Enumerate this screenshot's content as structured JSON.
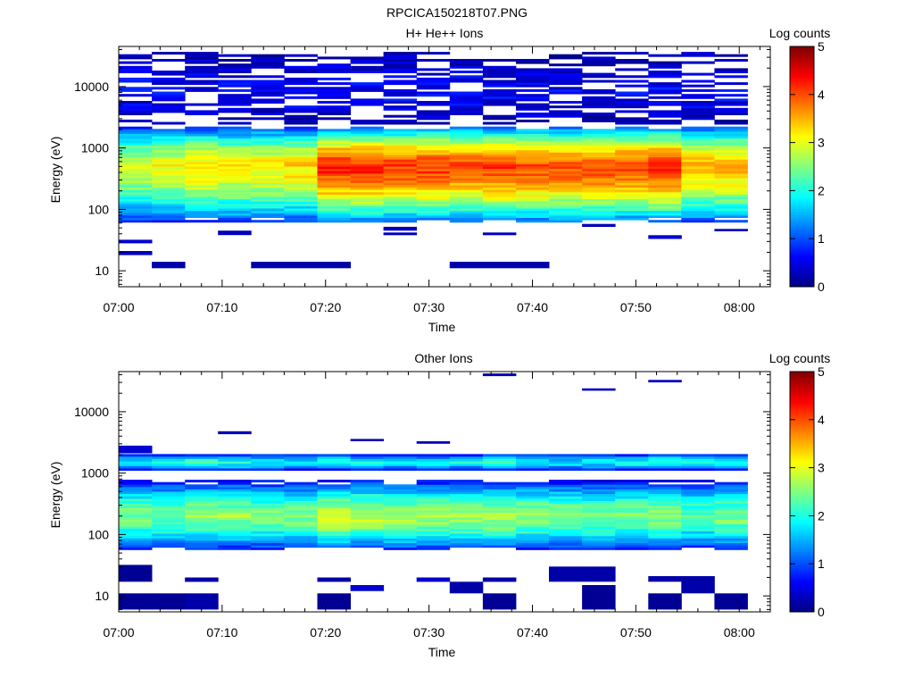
{
  "figure_title": "RPCICA150218T07.PNG",
  "chart_data": [
    {
      "type": "heatmap",
      "title": "H+ He++ Ions",
      "xlabel": "Time",
      "ylabel": "Energy (eV)",
      "x_range": [
        "07:00",
        "08:03"
      ],
      "x_ticks": [
        "07:00",
        "07:10",
        "07:20",
        "07:30",
        "07:40",
        "07:50",
        "08:00"
      ],
      "y_scale": "log",
      "y_range": [
        5.5,
        45000
      ],
      "y_ticks": [
        "10",
        "100",
        "1000",
        "10000"
      ],
      "colorbar": {
        "label": "Log counts",
        "range": [
          0,
          5
        ],
        "ticks": [
          "0",
          "1",
          "2",
          "3",
          "4",
          "5"
        ],
        "colormap": "jet"
      },
      "time_bins_start_min": [
        0,
        3.2,
        6.4,
        9.6,
        12.8,
        16,
        19.2,
        22.4,
        25.6,
        28.8,
        32,
        35.2,
        38.4,
        41.6,
        44.8,
        48,
        51.2,
        54.4,
        57.6
      ],
      "time_bin_width_min": 3.2,
      "bands": [
        {
          "e_min": 60,
          "e_max": 2300,
          "e_peak": 500,
          "peak": [
            2.9,
            3.1,
            3.3,
            3.2,
            3.2,
            3.3,
            4.2,
            4.2,
            4.1,
            4.1,
            4.0,
            4.1,
            4.0,
            4.0,
            4.0,
            4.0,
            4.2,
            3.5,
            3.5
          ]
        },
        {
          "e_min": 2500,
          "e_max": 38000,
          "e_peak": 8000,
          "peak": [
            0.6,
            0.6,
            0.6,
            0.6,
            0.6,
            0.6,
            0.6,
            0.6,
            0.6,
            0.6,
            0.6,
            0.6,
            0.6,
            0.6,
            0.6,
            0.6,
            0.6,
            0.6,
            0.6
          ]
        }
      ],
      "isolated": [
        {
          "bin": 0,
          "e_lo": 28,
          "e_hi": 32,
          "v": 0.4
        },
        {
          "bin": 0,
          "e_lo": 18,
          "e_hi": 21,
          "v": 0.3
        },
        {
          "bin": 1,
          "e_lo": 11,
          "e_hi": 14,
          "v": 0.2
        },
        {
          "bin": 4,
          "e_lo": 11,
          "e_hi": 14,
          "v": 0.2
        },
        {
          "bin": 5,
          "e_lo": 11,
          "e_hi": 14,
          "v": 0.2
        },
        {
          "bin": 6,
          "e_lo": 11,
          "e_hi": 14,
          "v": 0.2
        },
        {
          "bin": 10,
          "e_lo": 11,
          "e_hi": 14,
          "v": 0.2
        },
        {
          "bin": 11,
          "e_lo": 11,
          "e_hi": 14,
          "v": 0.2
        },
        {
          "bin": 12,
          "e_lo": 11,
          "e_hi": 14,
          "v": 0.2
        },
        {
          "bin": 3,
          "e_lo": 38,
          "e_hi": 45,
          "v": 0.3
        },
        {
          "bin": 8,
          "e_lo": 45,
          "e_hi": 52,
          "v": 0.3
        },
        {
          "bin": 8,
          "e_lo": 38,
          "e_hi": 42,
          "v": 0.3
        },
        {
          "bin": 11,
          "e_lo": 38,
          "e_hi": 42,
          "v": 0.3
        },
        {
          "bin": 14,
          "e_lo": 52,
          "e_hi": 58,
          "v": 0.3
        },
        {
          "bin": 16,
          "e_lo": 33,
          "e_hi": 38,
          "v": 0.4
        },
        {
          "bin": 18,
          "e_lo": 44,
          "e_hi": 48,
          "v": 0.3
        }
      ]
    },
    {
      "type": "heatmap",
      "title": "Other Ions",
      "xlabel": "Time",
      "ylabel": "Energy (eV)",
      "x_range": [
        "07:00",
        "08:03"
      ],
      "x_ticks": [
        "07:00",
        "07:10",
        "07:20",
        "07:30",
        "07:40",
        "07:50",
        "08:00"
      ],
      "y_scale": "log",
      "y_range": [
        5.5,
        45000
      ],
      "y_ticks": [
        "10",
        "100",
        "1000",
        "10000"
      ],
      "colorbar": {
        "label": "Log counts",
        "range": [
          0,
          5
        ],
        "ticks": [
          "0",
          "1",
          "2",
          "3",
          "4",
          "5"
        ],
        "colormap": "jet"
      },
      "time_bins_start_min": [
        0,
        3.2,
        6.4,
        9.6,
        12.8,
        16,
        19.2,
        22.4,
        25.6,
        28.8,
        32,
        35.2,
        38.4,
        41.6,
        44.8,
        48,
        51.2,
        54.4,
        57.6
      ],
      "time_bin_width_min": 3.2,
      "bands": [
        {
          "e_min": 55,
          "e_max": 750,
          "e_peak": 200,
          "peak": [
            2.5,
            2.4,
            2.6,
            2.6,
            2.5,
            2.5,
            2.9,
            2.8,
            2.7,
            2.7,
            2.7,
            2.7,
            2.6,
            2.5,
            2.5,
            2.5,
            2.6,
            2.3,
            2.5
          ]
        },
        {
          "e_min": 1100,
          "e_max": 2100,
          "e_peak": 1500,
          "peak": [
            1.7,
            1.9,
            2.1,
            2.0,
            1.8,
            1.8,
            2.0,
            1.9,
            1.9,
            1.8,
            1.9,
            2.0,
            1.9,
            1.8,
            1.8,
            1.9,
            2.1,
            1.9,
            1.9
          ]
        }
      ],
      "isolated": [
        {
          "bin": 0,
          "e_lo": 2100,
          "e_hi": 2800,
          "v": 0.4
        },
        {
          "bin": 3,
          "e_lo": 4300,
          "e_hi": 4800,
          "v": 0.3
        },
        {
          "bin": 7,
          "e_lo": 3300,
          "e_hi": 3600,
          "v": 0.3
        },
        {
          "bin": 9,
          "e_lo": 3000,
          "e_hi": 3300,
          "v": 0.3
        },
        {
          "bin": 11,
          "e_lo": 38000,
          "e_hi": 42000,
          "v": 0.3
        },
        {
          "bin": 14,
          "e_lo": 22000,
          "e_hi": 24000,
          "v": 0.3
        },
        {
          "bin": 16,
          "e_lo": 30000,
          "e_hi": 33000,
          "v": 0.3
        },
        {
          "bin": 0,
          "e_lo": 17,
          "e_hi": 32,
          "v": 0.1
        },
        {
          "bin": 0,
          "e_lo": 6,
          "e_hi": 11,
          "v": 0.1
        },
        {
          "bin": 1,
          "e_lo": 6,
          "e_hi": 11,
          "v": 0.1
        },
        {
          "bin": 2,
          "e_lo": 6,
          "e_hi": 11,
          "v": 0.2
        },
        {
          "bin": 2,
          "e_lo": 17,
          "e_hi": 20,
          "v": 0.2
        },
        {
          "bin": 6,
          "e_lo": 6,
          "e_hi": 11,
          "v": 0.1
        },
        {
          "bin": 6,
          "e_lo": 17,
          "e_hi": 20,
          "v": 0.2
        },
        {
          "bin": 7,
          "e_lo": 12,
          "e_hi": 15,
          "v": 0.4
        },
        {
          "bin": 9,
          "e_lo": 17,
          "e_hi": 20,
          "v": 0.4
        },
        {
          "bin": 10,
          "e_lo": 11,
          "e_hi": 17,
          "v": 0.2
        },
        {
          "bin": 11,
          "e_lo": 6,
          "e_hi": 11,
          "v": 0.1
        },
        {
          "bin": 11,
          "e_lo": 17,
          "e_hi": 20,
          "v": 0.2
        },
        {
          "bin": 13,
          "e_lo": 17,
          "e_hi": 30,
          "v": 0.2
        },
        {
          "bin": 14,
          "e_lo": 6,
          "e_hi": 15,
          "v": 0.1
        },
        {
          "bin": 14,
          "e_lo": 17,
          "e_hi": 30,
          "v": 0.2
        },
        {
          "bin": 16,
          "e_lo": 6,
          "e_hi": 11,
          "v": 0.1
        },
        {
          "bin": 16,
          "e_lo": 17,
          "e_hi": 21,
          "v": 0.2
        },
        {
          "bin": 17,
          "e_lo": 11,
          "e_hi": 21,
          "v": 0.2
        },
        {
          "bin": 18,
          "e_lo": 6,
          "e_hi": 11,
          "v": 0.1
        }
      ]
    }
  ]
}
